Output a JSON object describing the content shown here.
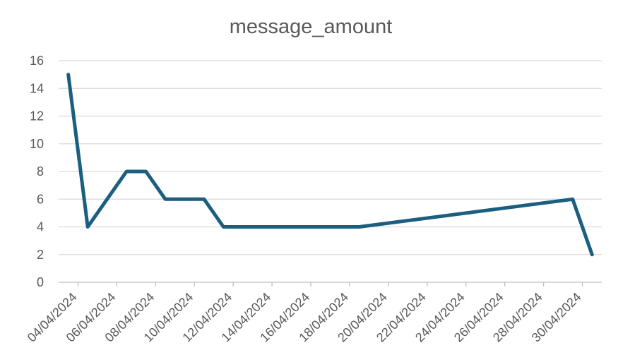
{
  "chart_data": {
    "type": "line",
    "title": "message_amount",
    "xlabel": "",
    "ylabel": "",
    "ylim": [
      0,
      16
    ],
    "yticks": [
      "0",
      "2",
      "4",
      "6",
      "8",
      "10",
      "12",
      "14",
      "16"
    ],
    "xlim": [
      "2024-04-04",
      "2024-05-01"
    ],
    "xticks": [
      "04/04/2024",
      "06/04/2024",
      "08/04/2024",
      "10/04/2024",
      "12/04/2024",
      "14/04/2024",
      "16/04/2024",
      "18/04/2024",
      "20/04/2024",
      "22/04/2024",
      "24/04/2024",
      "26/04/2024",
      "28/04/2024",
      "30/04/2024"
    ],
    "grid": true,
    "legend": "none",
    "color": "#1b5e7f",
    "series": [
      {
        "x": [
          "2024-04-04",
          "2024-04-05",
          "2024-04-07",
          "2024-04-08",
          "2024-04-09",
          "2024-04-11",
          "2024-04-12",
          "2024-04-19",
          "2024-04-30",
          "2024-05-01"
        ],
        "values": [
          15,
          4,
          8,
          8,
          6,
          6,
          4,
          4,
          6,
          2
        ]
      }
    ]
  }
}
